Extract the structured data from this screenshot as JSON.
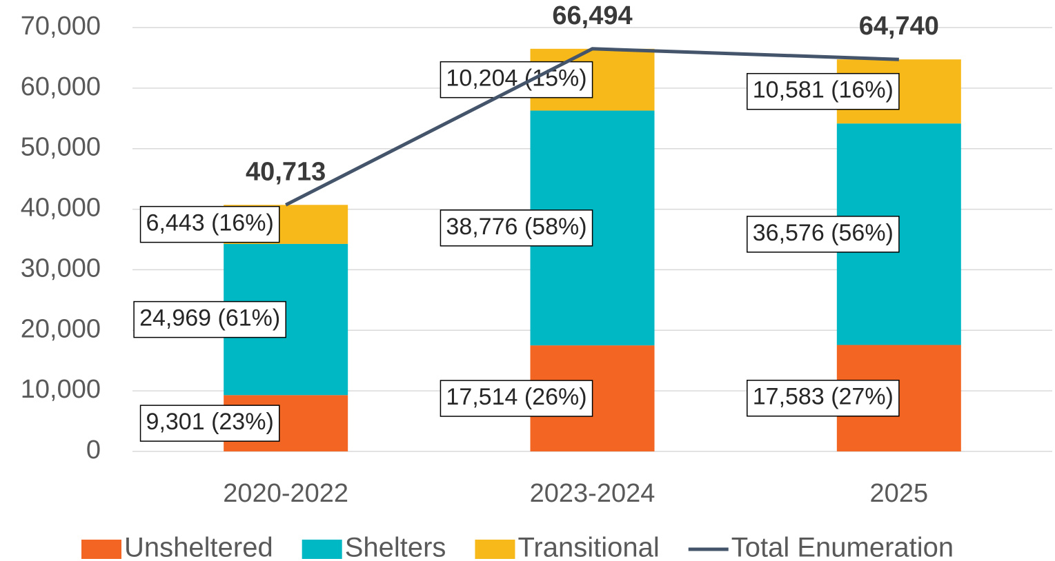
{
  "chart_data": {
    "type": "bar",
    "stacked": true,
    "categories": [
      "2020-2022",
      "2023-2024",
      "2025"
    ],
    "series": [
      {
        "name": "Unsheltered",
        "color": "#f26522",
        "values": [
          9301,
          17514,
          17583
        ],
        "value_labels": [
          "9,301 (23%)",
          "17,514 (26%)",
          "17,583 (27%)"
        ]
      },
      {
        "name": "Shelters",
        "color": "#00b8c4",
        "values": [
          24969,
          38776,
          36576
        ],
        "value_labels": [
          "24,969 (61%)",
          "38,776 (58%)",
          "36,576 (56%)"
        ]
      },
      {
        "name": "Transitional",
        "color": "#f6b919",
        "values": [
          6443,
          10204,
          10581
        ],
        "value_labels": [
          "6,443 (16%)",
          "10,204 (15%)",
          "10,581 (16%)"
        ]
      },
      {
        "name": "Total Enumeration",
        "type": "line",
        "color": "#44546a",
        "values": [
          40713,
          66494,
          64740
        ],
        "value_labels": [
          "40,713",
          "66,494",
          "64,740"
        ]
      }
    ],
    "ylim": [
      0,
      70000
    ],
    "yticks": [
      0,
      {
        "value": 10000,
        "label": "10,000"
      },
      {
        "value": 20000,
        "label": "20,000"
      },
      {
        "value": 30000,
        "label": "30,000"
      },
      {
        "value": 40000,
        "label": "40,000"
      },
      {
        "value": 50000,
        "label": "50,000"
      },
      {
        "value": 60000,
        "label": "60,000"
      },
      {
        "value": 70000,
        "label": "70,000"
      }
    ],
    "grid": true,
    "legend": "bottom"
  }
}
